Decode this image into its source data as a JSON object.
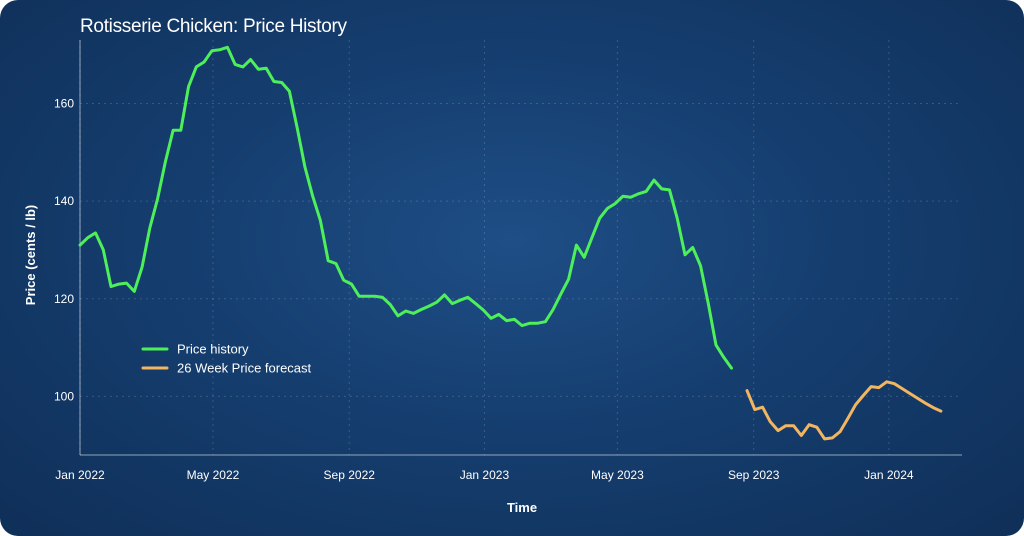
{
  "chart_data": {
    "type": "line",
    "title": "Rotisserie Chicken: Price History",
    "xlabel": "Time",
    "ylabel": "Price (cents / lb)",
    "ylim": [
      88,
      173
    ],
    "yticks": [
      100,
      120,
      140,
      160
    ],
    "x_ticks": [
      {
        "label": "Jan 2022",
        "date": "2022-01-01"
      },
      {
        "label": "May 2022",
        "date": "2022-05-01"
      },
      {
        "label": "Sep 2022",
        "date": "2022-09-01"
      },
      {
        "label": "Jan 2023",
        "date": "2023-01-01"
      },
      {
        "label": "May 2023",
        "date": "2023-05-01"
      },
      {
        "label": "Sep 2023",
        "date": "2023-09-01"
      },
      {
        "label": "Jan 2024",
        "date": "2024-01-01"
      }
    ],
    "xlim": [
      "2022-01-01",
      "2024-03-07"
    ],
    "grid": true,
    "legend_position": "center-left",
    "series": [
      {
        "name": "Price history",
        "color": "#4ef05a",
        "points": [
          [
            "2022-01-01",
            131.0
          ],
          [
            "2022-01-08",
            132.5
          ],
          [
            "2022-01-15",
            133.5
          ],
          [
            "2022-01-22",
            130.0
          ],
          [
            "2022-01-29",
            122.5
          ],
          [
            "2022-02-05",
            123.0
          ],
          [
            "2022-02-12",
            123.2
          ],
          [
            "2022-02-19",
            121.5
          ],
          [
            "2022-02-26",
            126.5
          ],
          [
            "2022-03-05",
            134.5
          ],
          [
            "2022-03-12",
            140.5
          ],
          [
            "2022-03-19",
            148.0
          ],
          [
            "2022-03-26",
            154.5
          ],
          [
            "2022-04-02",
            154.5
          ],
          [
            "2022-04-09",
            163.5
          ],
          [
            "2022-04-16",
            167.5
          ],
          [
            "2022-04-23",
            168.5
          ],
          [
            "2022-04-30",
            170.8
          ],
          [
            "2022-05-07",
            171.0
          ],
          [
            "2022-05-14",
            171.5
          ],
          [
            "2022-05-21",
            168.0
          ],
          [
            "2022-05-28",
            167.5
          ],
          [
            "2022-06-04",
            169.0
          ],
          [
            "2022-06-11",
            167.0
          ],
          [
            "2022-06-18",
            167.2
          ],
          [
            "2022-06-25",
            164.5
          ],
          [
            "2022-07-02",
            164.3
          ],
          [
            "2022-07-09",
            162.5
          ],
          [
            "2022-07-16",
            155.0
          ],
          [
            "2022-07-23",
            147.0
          ],
          [
            "2022-07-30",
            141.0
          ],
          [
            "2022-08-06",
            136.0
          ],
          [
            "2022-08-13",
            127.8
          ],
          [
            "2022-08-20",
            127.2
          ],
          [
            "2022-08-27",
            123.8
          ],
          [
            "2022-09-03",
            123.0
          ],
          [
            "2022-09-10",
            120.5
          ],
          [
            "2022-09-17",
            120.5
          ],
          [
            "2022-09-24",
            120.5
          ],
          [
            "2022-10-01",
            120.3
          ],
          [
            "2022-10-08",
            118.8
          ],
          [
            "2022-10-15",
            116.5
          ],
          [
            "2022-10-22",
            117.5
          ],
          [
            "2022-10-29",
            117.0
          ],
          [
            "2022-11-05",
            117.8
          ],
          [
            "2022-11-12",
            118.5
          ],
          [
            "2022-11-19",
            119.3
          ],
          [
            "2022-11-26",
            120.8
          ],
          [
            "2022-12-03",
            119.0
          ],
          [
            "2022-12-10",
            119.7
          ],
          [
            "2022-12-17",
            120.3
          ],
          [
            "2022-12-24",
            119.0
          ],
          [
            "2022-12-31",
            117.7
          ],
          [
            "2023-01-07",
            116.0
          ],
          [
            "2023-01-14",
            116.8
          ],
          [
            "2023-01-21",
            115.5
          ],
          [
            "2023-01-28",
            115.8
          ],
          [
            "2023-02-04",
            114.5
          ],
          [
            "2023-02-11",
            115.0
          ],
          [
            "2023-02-18",
            115.0
          ],
          [
            "2023-02-25",
            115.3
          ],
          [
            "2023-03-04",
            117.8
          ],
          [
            "2023-03-11",
            121.0
          ],
          [
            "2023-03-18",
            124.0
          ],
          [
            "2023-03-25",
            131.0
          ],
          [
            "2023-04-01",
            128.5
          ],
          [
            "2023-04-08",
            132.5
          ],
          [
            "2023-04-15",
            136.5
          ],
          [
            "2023-04-22",
            138.5
          ],
          [
            "2023-04-29",
            139.5
          ],
          [
            "2023-05-06",
            141.0
          ],
          [
            "2023-05-13",
            140.8
          ],
          [
            "2023-05-20",
            141.5
          ],
          [
            "2023-05-27",
            142.0
          ],
          [
            "2023-06-03",
            144.3
          ],
          [
            "2023-06-10",
            142.5
          ],
          [
            "2023-06-17",
            142.3
          ],
          [
            "2023-06-24",
            136.5
          ],
          [
            "2023-07-01",
            129.0
          ],
          [
            "2023-07-08",
            130.5
          ],
          [
            "2023-07-15",
            126.8
          ],
          [
            "2023-07-22",
            119.0
          ],
          [
            "2023-07-29",
            110.5
          ],
          [
            "2023-08-05",
            108.0
          ],
          [
            "2023-08-12",
            105.8
          ]
        ]
      },
      {
        "name": "26 Week Price forecast",
        "color": "#f2b560",
        "points": [
          [
            "2023-08-26",
            101.2
          ],
          [
            "2023-09-02",
            97.3
          ],
          [
            "2023-09-09",
            97.8
          ],
          [
            "2023-09-16",
            94.8
          ],
          [
            "2023-09-23",
            93.0
          ],
          [
            "2023-09-30",
            94.0
          ],
          [
            "2023-10-07",
            94.0
          ],
          [
            "2023-10-14",
            92.0
          ],
          [
            "2023-10-21",
            94.2
          ],
          [
            "2023-10-28",
            93.7
          ],
          [
            "2023-11-04",
            91.3
          ],
          [
            "2023-11-11",
            91.5
          ],
          [
            "2023-11-18",
            92.8
          ],
          [
            "2023-11-25",
            95.5
          ],
          [
            "2023-12-02",
            98.3
          ],
          [
            "2023-12-09",
            100.2
          ],
          [
            "2023-12-16",
            102.0
          ],
          [
            "2023-12-23",
            101.8
          ],
          [
            "2023-12-30",
            103.0
          ],
          [
            "2024-01-06",
            102.6
          ],
          [
            "2024-01-13",
            101.6
          ],
          [
            "2024-01-20",
            100.6
          ],
          [
            "2024-01-27",
            99.6
          ],
          [
            "2024-02-03",
            98.6
          ],
          [
            "2024-02-10",
            97.7
          ],
          [
            "2024-02-17",
            97.0
          ]
        ]
      }
    ]
  }
}
